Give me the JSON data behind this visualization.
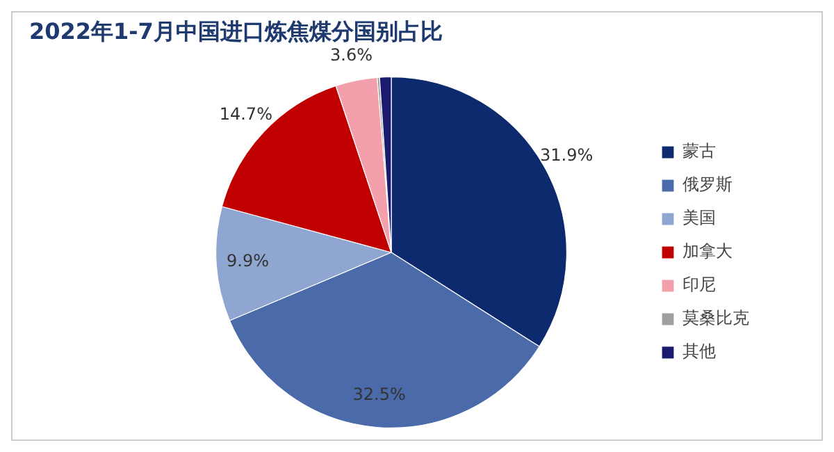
{
  "chart_data": {
    "type": "pie",
    "title": "2022年1-7月中国进口炼焦煤分国别占比",
    "categories": [
      "蒙古",
      "俄罗斯",
      "美国",
      "加拿大",
      "印尼",
      "莫桑比克",
      "其他"
    ],
    "values": [
      31.9,
      32.5,
      9.9,
      14.7,
      3.6,
      0.2,
      1.0
    ],
    "colors": [
      "#0d2a6e",
      "#4a6aaa",
      "#8ea6d0",
      "#c00000",
      "#f4a0ac",
      "#a0a0a0",
      "#1a1a6e"
    ],
    "value_labels": [
      "31.9%",
      "32.5%",
      "9.9%",
      "14.7%",
      "3.6%",
      null,
      null
    ],
    "legend": "right"
  }
}
